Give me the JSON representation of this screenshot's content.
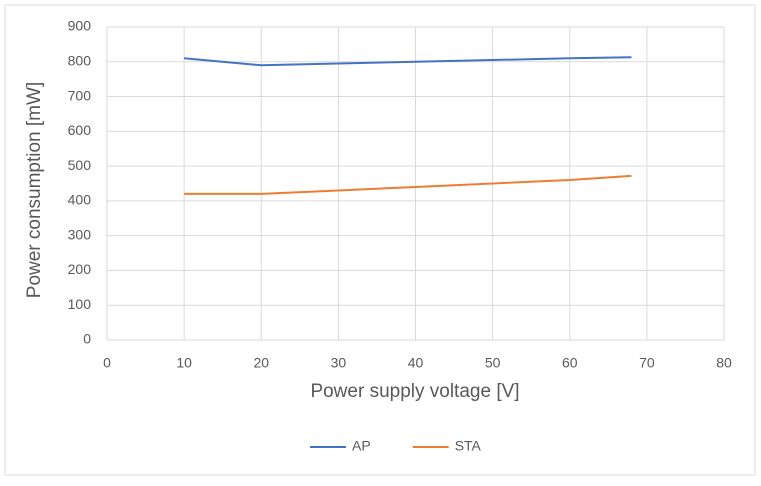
{
  "chart_data": {
    "type": "line",
    "x_label": "Power supply voltage [V]",
    "y_label": "Power consumption [mW]",
    "x": [
      10,
      20,
      30,
      40,
      50,
      60,
      68
    ],
    "series": [
      {
        "name": "AP",
        "color": "#4472c4",
        "values": [
          810,
          790,
          795,
          800,
          805,
          810,
          813
        ]
      },
      {
        "name": "STA",
        "color": "#ed7d31",
        "values": [
          420,
          420,
          430,
          440,
          450,
          460,
          472
        ]
      }
    ],
    "xlim": [
      0,
      80
    ],
    "xticks": [
      0,
      10,
      20,
      30,
      40,
      50,
      60,
      70,
      80
    ],
    "ylim": [
      0,
      900
    ],
    "yticks": [
      0,
      100,
      200,
      300,
      400,
      500,
      600,
      700,
      800,
      900
    ],
    "grid": true,
    "legend": "bottom"
  }
}
